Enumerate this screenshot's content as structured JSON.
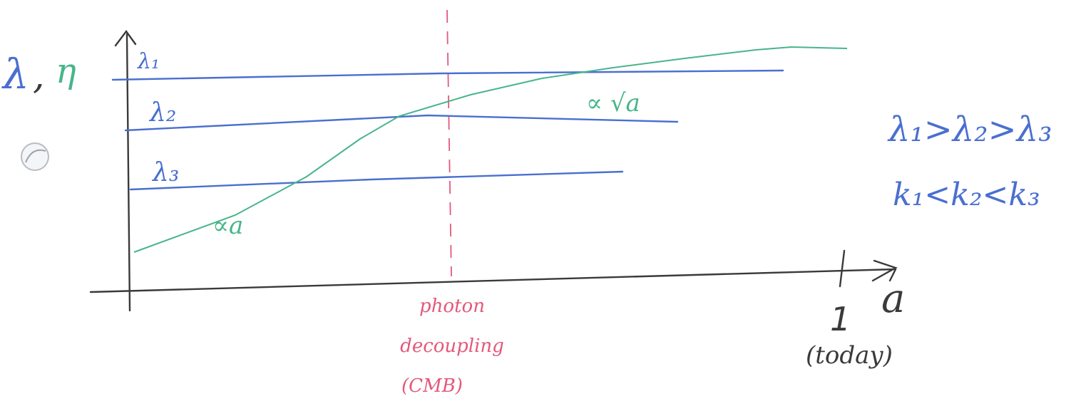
{
  "colors": {
    "axis": "#3a3a3a",
    "wavelength_lines": "#4a6fd0",
    "horizon_curve": "#47b58a",
    "decoupling": "#e4587a",
    "hole_punch": "#c9ccd3"
  },
  "y_axis_label": {
    "lambda": "λ",
    "comma": ",",
    "eta": "η"
  },
  "x_axis": {
    "label": "a",
    "tick_label": "1",
    "tick_caption": "(today)"
  },
  "wavelengths": [
    {
      "label": "λ₁"
    },
    {
      "label": "λ₂"
    },
    {
      "label": "λ₃"
    }
  ],
  "horizon_curve_labels": {
    "early": "∝a",
    "late": "∝ √a"
  },
  "decoupling": {
    "line1": "photon",
    "line2": "decoupling",
    "line3": "(CMB)"
  },
  "relations": {
    "wavelengths": "λ₁>λ₂>λ₃",
    "wavenumbers": "k₁<k₂<k₃"
  }
}
